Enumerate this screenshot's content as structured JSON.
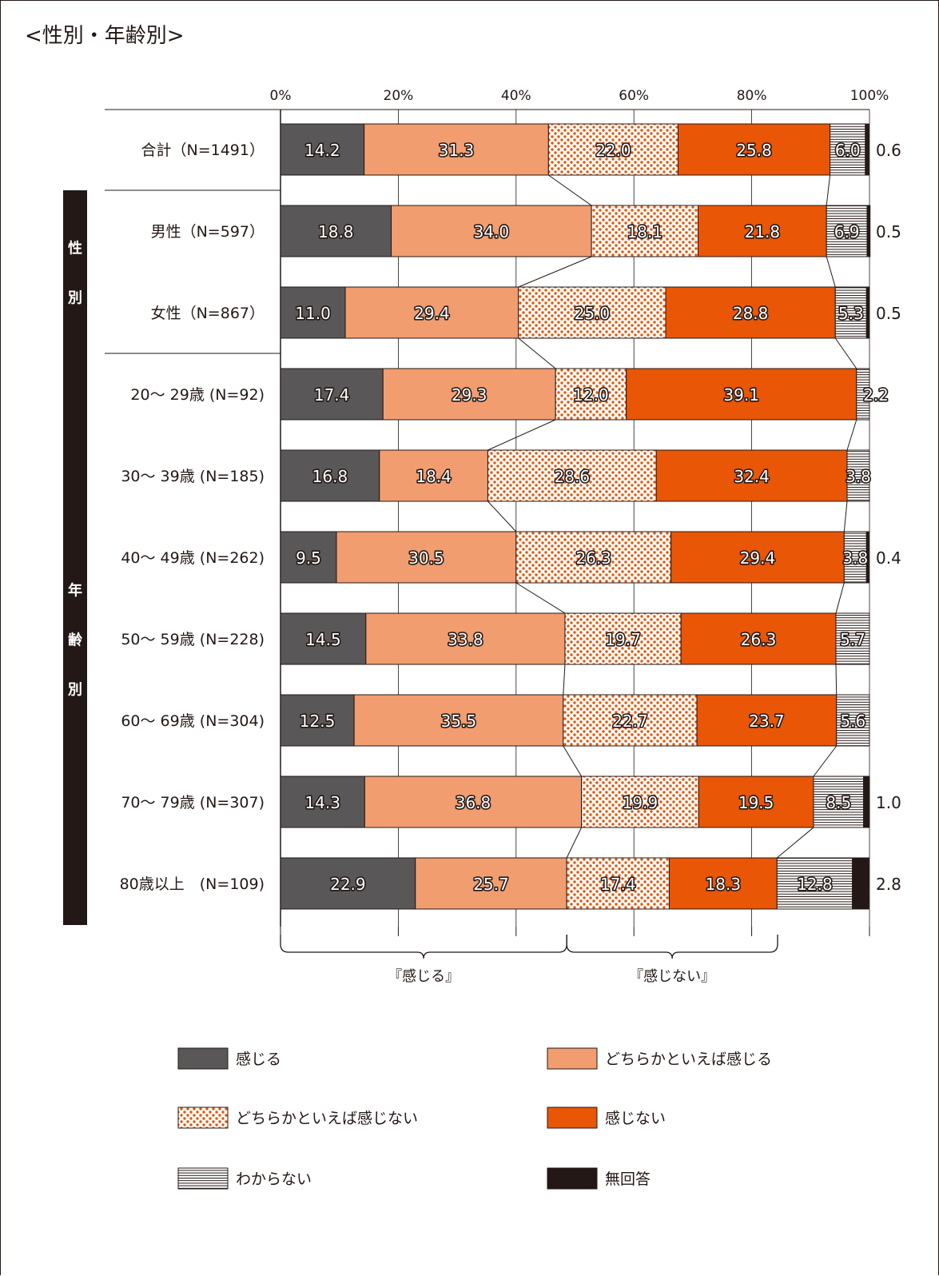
{
  "heading": "<性別・年齢別>",
  "chart_data": {
    "type": "bar",
    "orientation": "horizontal",
    "stacked": true,
    "xlim": [
      0,
      100
    ],
    "x_ticks": [
      "0%",
      "20%",
      "40%",
      "60%",
      "80%",
      "100%"
    ],
    "groups": [
      {
        "label": "性\n別",
        "rows": [
          1,
          2
        ]
      },
      {
        "label": "年\n齢\n別",
        "rows": [
          3,
          4,
          5,
          6,
          7,
          8,
          9
        ]
      }
    ],
    "categories": [
      "合計（N=1491）",
      "男性（N=597）",
      "女性（N=867）",
      "20～ 29歳 (N=92)",
      "30～ 39歳 (N=185)",
      "40～ 49歳 (N=262)",
      "50～ 59歳 (N=228)",
      "60～ 69歳 (N=304)",
      "70～ 79歳 (N=307)",
      "80歳以上　(N=109)"
    ],
    "series": [
      {
        "name": "感じる",
        "color": "#595757",
        "pattern": "solid",
        "values": [
          14.2,
          18.8,
          11.0,
          17.4,
          16.8,
          9.5,
          14.5,
          12.5,
          14.3,
          22.9
        ]
      },
      {
        "name": "どちらかといえば感じる",
        "color": "#f19d6f",
        "pattern": "solid",
        "values": [
          31.3,
          34.0,
          29.4,
          29.3,
          18.4,
          30.5,
          33.8,
          35.5,
          36.8,
          25.7
        ]
      },
      {
        "name": "どちらかといえば感じない",
        "color": "#e85606",
        "pattern": "dots",
        "values": [
          22.0,
          18.1,
          25.0,
          12.0,
          28.6,
          26.3,
          19.7,
          22.7,
          19.9,
          17.4
        ]
      },
      {
        "name": "感じない",
        "color": "#e85606",
        "pattern": "solid",
        "values": [
          25.8,
          21.8,
          28.8,
          39.1,
          32.4,
          29.4,
          26.3,
          23.7,
          19.5,
          18.3
        ]
      },
      {
        "name": "わからない",
        "color": "#231815",
        "pattern": "hlines",
        "values": [
          6.0,
          6.9,
          5.3,
          2.2,
          3.8,
          3.8,
          5.7,
          5.6,
          8.5,
          12.8
        ]
      },
      {
        "name": "無回答",
        "color": "#231815",
        "pattern": "solid",
        "values": [
          0.6,
          0.5,
          0.5,
          0.0,
          0.0,
          0.4,
          0.0,
          0.0,
          1.0,
          2.8
        ]
      }
    ],
    "data_labels": [
      [
        "14.2",
        "31.3",
        "22.0",
        "25.8",
        "6.0",
        "0.6"
      ],
      [
        "18.8",
        "34.0",
        "18.1",
        "21.8",
        "6.9",
        "0.5"
      ],
      [
        "11.0",
        "29.4",
        "25.0",
        "28.8",
        "5.3",
        "0.5"
      ],
      [
        "17.4",
        "29.3",
        "12.0",
        "39.1",
        "2.2",
        ""
      ],
      [
        "16.8",
        "18.4",
        "28.6",
        "32.4",
        "3.8",
        ""
      ],
      [
        "9.5",
        "30.5",
        "26.3",
        "29.4",
        "3.8",
        "0.4"
      ],
      [
        "14.5",
        "33.8",
        "19.7",
        "26.3",
        "5.7",
        ""
      ],
      [
        "12.5",
        "35.5",
        "22.7",
        "23.7",
        "5.6",
        ""
      ],
      [
        "14.3",
        "36.8",
        "19.9",
        "19.5",
        "8.5",
        "1.0"
      ],
      [
        "22.9",
        "25.7",
        "17.4",
        "18.3",
        "12.8",
        "2.8"
      ]
    ],
    "brackets": [
      {
        "label": "『感じる』",
        "range": [
          0,
          48.6
        ]
      },
      {
        "label": "『感じない』",
        "range": [
          48.6,
          84.4
        ]
      }
    ],
    "legend": {
      "placement": "bottom",
      "items": [
        "感じる",
        "どちらかといえば感じる",
        "どちらかといえば感じない",
        "感じない",
        "わからない",
        "無回答"
      ]
    },
    "grid": true
  }
}
